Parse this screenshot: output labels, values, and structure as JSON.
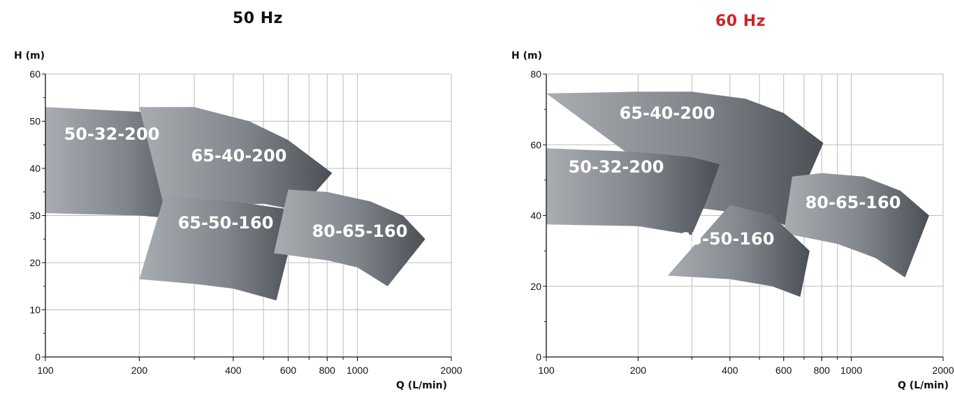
{
  "chart_data": [
    {
      "type": "area",
      "title": "50 Hz",
      "title_color": "#111111",
      "xlabel": "Q (L/min)",
      "ylabel": "H (m)",
      "x_scale": "log",
      "xlim": [
        100,
        2000
      ],
      "ylim": [
        0,
        60
      ],
      "x_ticks": [
        100,
        200,
        400,
        600,
        800,
        1000,
        2000
      ],
      "x_grid": [
        200,
        300,
        400,
        500,
        600,
        700,
        800,
        900,
        1000
      ],
      "y_ticks": [
        0,
        10,
        20,
        30,
        40,
        50,
        60
      ],
      "grid": true,
      "series": [
        {
          "name": "50-32-200",
          "q_max": 295,
          "h_max": 53,
          "upper": [
            [
              100,
              53
            ],
            [
              200,
              52
            ],
            [
              295,
              50
            ]
          ],
          "lower": [
            [
              100,
              30.5
            ],
            [
              200,
              30
            ],
            [
              245,
              29.5
            ]
          ],
          "right_edge": [
            [
              295,
              50
            ],
            [
              270,
              40
            ],
            [
              245,
              29.5
            ]
          ]
        },
        {
          "name": "65-40-200",
          "q_max": 830,
          "h_max": 53,
          "upper": [
            [
              200,
              53
            ],
            [
              300,
              53
            ],
            [
              450,
              50
            ],
            [
              600,
              46
            ],
            [
              830,
              39
            ]
          ],
          "lower": [
            [
              245,
              29.5
            ],
            [
              350,
              32
            ],
            [
              500,
              32.5
            ],
            [
              650,
              31
            ]
          ],
          "right_edge": [
            [
              830,
              39
            ],
            [
              650,
              31
            ]
          ]
        },
        {
          "name": "65-50-160",
          "q_max": 650,
          "h_max": 34,
          "upper": [
            [
              240,
              34
            ],
            [
              400,
              33
            ],
            [
              650,
              31
            ]
          ],
          "lower": [
            [
              200,
              16.5
            ],
            [
              300,
              15.5
            ],
            [
              400,
              14.5
            ],
            [
              550,
              12
            ]
          ],
          "right_edge": [
            [
              650,
              31
            ],
            [
              600,
              22
            ],
            [
              550,
              12
            ]
          ]
        },
        {
          "name": "80-65-160",
          "q_max": 1650,
          "h_max": 35.5,
          "upper": [
            [
              600,
              35.5
            ],
            [
              800,
              35
            ],
            [
              1100,
              33
            ],
            [
              1400,
              30
            ],
            [
              1650,
              25
            ]
          ],
          "lower": [
            [
              540,
              22
            ],
            [
              800,
              20.5
            ],
            [
              1000,
              19
            ],
            [
              1250,
              15
            ]
          ],
          "right_edge": [
            [
              1650,
              25
            ],
            [
              1250,
              15
            ]
          ]
        }
      ]
    },
    {
      "type": "area",
      "title": "60 Hz",
      "title_color": "#d2232a",
      "xlabel": "Q (L/min)",
      "ylabel": "H (m)",
      "x_scale": "log",
      "xlim": [
        100,
        2000
      ],
      "ylim": [
        0,
        80
      ],
      "x_ticks": [
        100,
        200,
        400,
        600,
        800,
        1000,
        2000
      ],
      "x_grid": [
        200,
        300,
        400,
        500,
        600,
        700,
        800,
        900,
        1000
      ],
      "y_ticks": [
        0,
        20,
        40,
        60,
        80
      ],
      "grid": true,
      "series": [
        {
          "name": "65-40-200",
          "q_max": 810,
          "h_max": 75,
          "upper": [
            [
              100,
              74.5
            ],
            [
              200,
              75
            ],
            [
              300,
              75
            ],
            [
              450,
              73
            ],
            [
              600,
              69
            ],
            [
              810,
              60.5
            ]
          ],
          "lower": [
            [
              325,
              42
            ],
            [
              500,
              40
            ],
            [
              640,
              36.5
            ]
          ],
          "right_edge": [
            [
              810,
              60.5
            ],
            [
              700,
              48
            ],
            [
              640,
              36.5
            ]
          ]
        },
        {
          "name": "50-32-200",
          "q_max": 370,
          "h_max": 59,
          "upper": [
            [
              100,
              59
            ],
            [
              200,
              58
            ],
            [
              300,
              56.5
            ],
            [
              370,
              54.5
            ]
          ],
          "lower": [
            [
              100,
              37.5
            ],
            [
              200,
              37
            ],
            [
              300,
              34.5
            ]
          ],
          "right_edge": [
            [
              370,
              54.5
            ],
            [
              335,
              44
            ],
            [
              300,
              34.5
            ]
          ]
        },
        {
          "name": "80-65-160",
          "q_max": 1800,
          "h_max": 52,
          "upper": [
            [
              640,
              51
            ],
            [
              800,
              52
            ],
            [
              1100,
              51
            ],
            [
              1450,
              47
            ],
            [
              1800,
              40
            ]
          ],
          "lower": [
            [
              600,
              35
            ],
            [
              900,
              32
            ],
            [
              1200,
              28
            ],
            [
              1500,
              22.5
            ]
          ],
          "right_edge": [
            [
              1800,
              40
            ],
            [
              1500,
              22.5
            ]
          ]
        },
        {
          "name": "65-50-160",
          "q_max": 730,
          "h_max": 43,
          "upper": [
            [
              400,
              43
            ],
            [
              550,
              40
            ],
            [
              730,
              30
            ]
          ],
          "lower": [
            [
              250,
              23
            ],
            [
              400,
              22
            ],
            [
              550,
              20
            ],
            [
              680,
              17
            ]
          ],
          "right_edge": [
            [
              730,
              30
            ],
            [
              680,
              17
            ]
          ]
        }
      ]
    }
  ]
}
